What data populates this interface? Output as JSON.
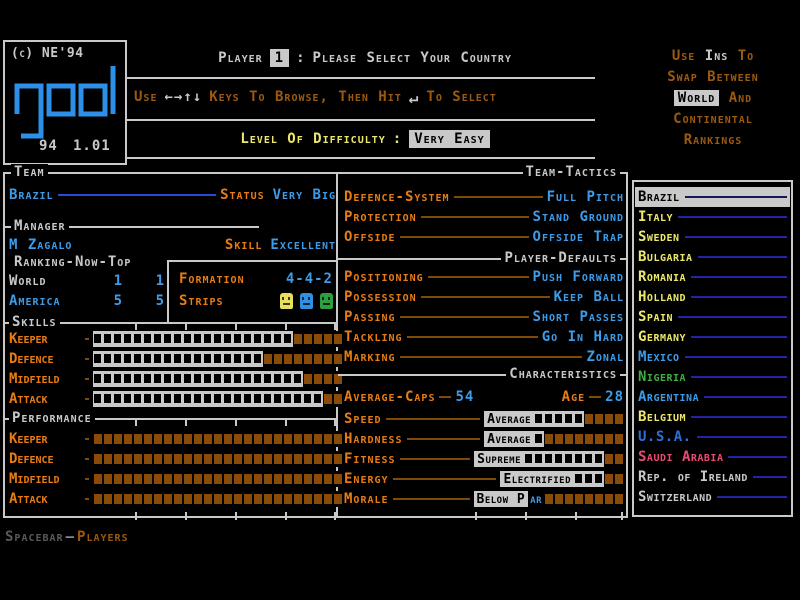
{
  "colors": {
    "blue": "#3d9be8",
    "orange": "#e87c14",
    "brown": "#9c5a10",
    "yellow": "#ece86e",
    "gray": "#c9c9c9",
    "green": "#3fae42",
    "pink": "#e84a73",
    "dark_blue": "#2e6fd8",
    "line_navy": "#2323a8",
    "bar_fill_gray": "#c9c9c9",
    "bar_empty_brown": "#8a4a08"
  },
  "header": {
    "copyright": "(c) NE'94",
    "logo_word": "goal",
    "logo_year": "94",
    "logo_version": "1.01",
    "player_label": "Player",
    "player_number": "1",
    "colon": ":",
    "prompt": "Please Select Your Country",
    "hint_pre": "Use",
    "hint_arrows": "←→↑↓",
    "hint_mid": "Keys To Browse, Then Hit",
    "hint_enter": "↵",
    "hint_post": "To Select",
    "difficulty_label": "Level Of Difficulty",
    "difficulty_colon": ":",
    "difficulty_value": "Very Easy",
    "note": {
      "l1_pre": "Use",
      "l1_key": "Ins",
      "l1_post": "To",
      "l2": "Swap Between",
      "l3_key": "World",
      "l3_post": "And",
      "l4": "Continental",
      "l5": "Rankings"
    }
  },
  "team_panel": {
    "section": "Team",
    "name": "Brazil",
    "status_label": "Status",
    "status_value": "Very Big",
    "manager_section": "Manager",
    "manager_name": "M Zagalo",
    "skill_label": "Skill",
    "skill_value": "Excellent",
    "ranking_section": "Ranking-Now-Top",
    "ranking_rows": [
      {
        "label": "World",
        "now": "1",
        "top": "1"
      },
      {
        "label": "America",
        "now": "5",
        "top": "5"
      }
    ],
    "formation_label": "Formation",
    "formation_value": "4-4-2",
    "strips_label": "Strips",
    "strips": [
      "#e8e05a",
      "#2f8fe0",
      "#2f9e3f"
    ],
    "skills_section": "Skills",
    "skills": [
      {
        "label": "Keeper",
        "filled": 20,
        "total": 25
      },
      {
        "label": "Defence",
        "filled": 17,
        "total": 25
      },
      {
        "label": "Midfield",
        "filled": 21,
        "total": 25
      },
      {
        "label": "Attack",
        "filled": 23,
        "total": 25
      }
    ],
    "performance_section": "Performance",
    "performance": [
      {
        "label": "Keeper",
        "filled": 0,
        "total": 25
      },
      {
        "label": "Defence",
        "filled": 0,
        "total": 25
      },
      {
        "label": "Midfield",
        "filled": 0,
        "total": 25
      },
      {
        "label": "Attack",
        "filled": 0,
        "total": 25
      }
    ]
  },
  "tactics_panel": {
    "section": "Team-Tactics",
    "tactics": [
      {
        "label": "Defence-System",
        "value": "Full Pitch"
      },
      {
        "label": "Protection",
        "value": "Stand Ground"
      },
      {
        "label": "Offside",
        "value": "Offside Trap"
      }
    ],
    "defaults_section": "Player-Defaults",
    "defaults": [
      {
        "label": "Positioning",
        "value": "Push Forward"
      },
      {
        "label": "Possession",
        "value": "Keep Ball"
      },
      {
        "label": "Passing",
        "value": "Short Passes"
      },
      {
        "label": "Tackling",
        "value": "Go In Hard"
      },
      {
        "label": "Marking",
        "value": "Zonal"
      }
    ],
    "characteristics_section": "Characteristics",
    "caps_label": "Average-Caps",
    "caps_value": "54",
    "age_label": "Age",
    "age_value": "28",
    "characteristics": [
      {
        "label": "Speed",
        "bar_text": "Average",
        "overflow": "",
        "extra": 5,
        "empty": 4
      },
      {
        "label": "Hardness",
        "bar_text": "Average",
        "overflow": "",
        "extra": 1,
        "empty": 8
      },
      {
        "label": "Fitness",
        "bar_text": "Supreme",
        "overflow": "",
        "extra": 8,
        "empty": 2
      },
      {
        "label": "Energy",
        "bar_text": "Electrified",
        "overflow": "",
        "extra": 3,
        "empty": 2
      },
      {
        "label": "Morale",
        "bar_text": "Below P",
        "overflow": "ar",
        "extra": 0,
        "empty": 8
      }
    ]
  },
  "country_list": {
    "selected": "Brazil",
    "items": [
      {
        "name": "Brazil",
        "color": "selected"
      },
      {
        "name": "Italy",
        "color": "yellow"
      },
      {
        "name": "Sweden",
        "color": "yellow"
      },
      {
        "name": "Bulgaria",
        "color": "yellow"
      },
      {
        "name": "Romania",
        "color": "yellow"
      },
      {
        "name": "Holland",
        "color": "yellow"
      },
      {
        "name": "Spain",
        "color": "yellow"
      },
      {
        "name": "Germany",
        "color": "yellow"
      },
      {
        "name": "Mexico",
        "color": "lblue"
      },
      {
        "name": "Nigeria",
        "color": "green"
      },
      {
        "name": "Argentina",
        "color": "lblue"
      },
      {
        "name": "Belgium",
        "color": "yellow"
      },
      {
        "name": "U.S.A.",
        "color": "blue"
      },
      {
        "name": "Saudi Arabia",
        "color": "pink"
      },
      {
        "name": "Rep. of Ireland",
        "color": "gray"
      },
      {
        "name": "Switzerland",
        "color": "gray"
      }
    ]
  },
  "footer": {
    "key": "Spacebar",
    "dash": "—",
    "action": "Players"
  }
}
